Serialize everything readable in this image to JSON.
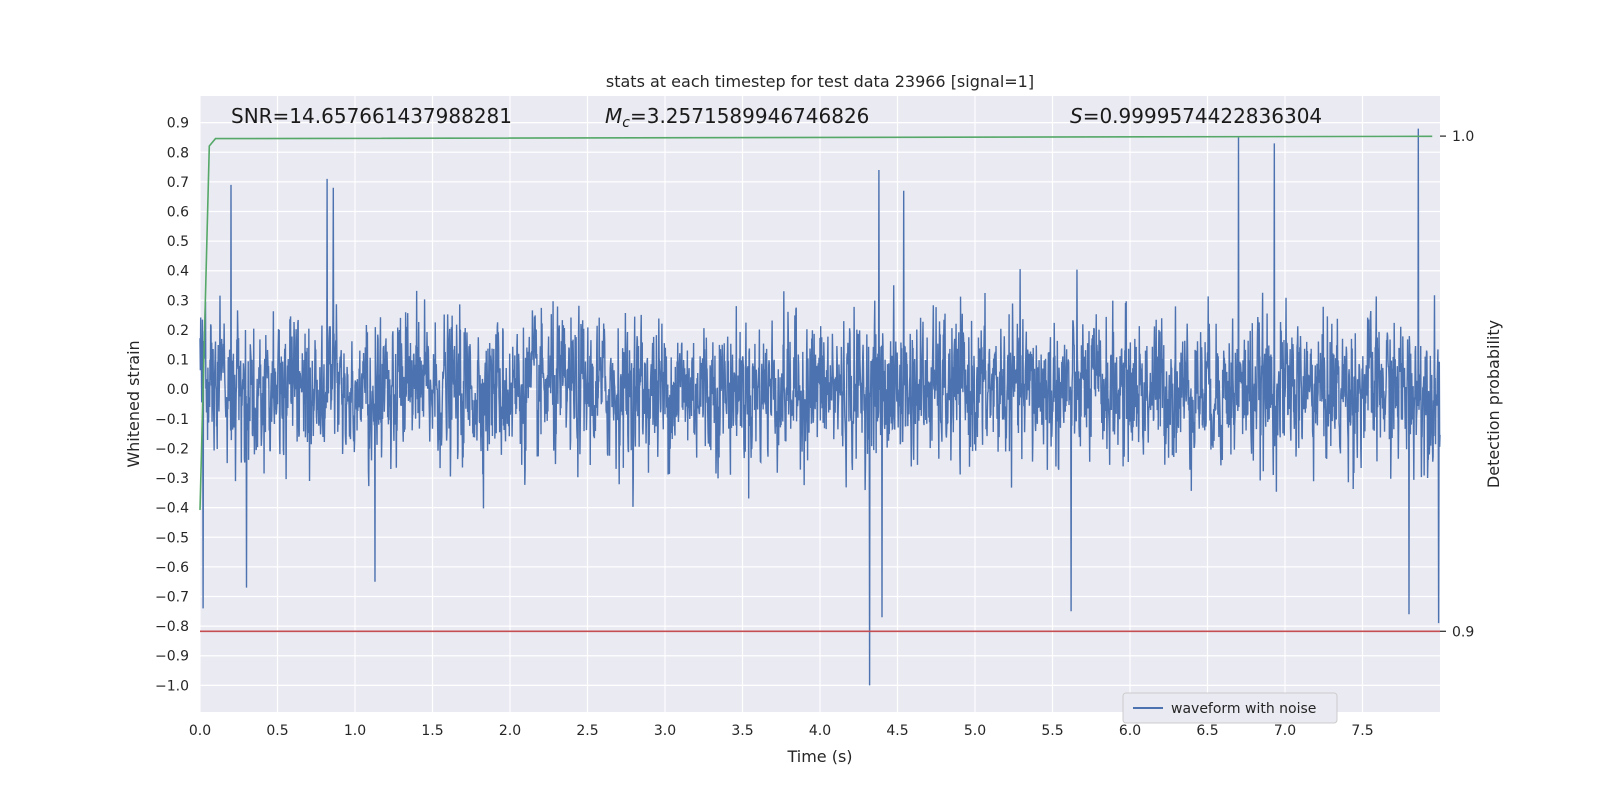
{
  "chart_data": {
    "type": "line",
    "title": "stats at each timestep for test data 23966 [signal=1]",
    "xlabel": "Time (s)",
    "ylabel": "Whitened strain",
    "y2label": "Detection probability",
    "xlim": [
      0.0,
      8.0
    ],
    "ylim": [
      -1.09,
      0.99
    ],
    "y2lim": [
      0.8837,
      1.0081
    ],
    "x_ticks": [
      "0.0",
      "0.5",
      "1.0",
      "1.5",
      "2.0",
      "2.5",
      "3.0",
      "3.5",
      "4.0",
      "4.5",
      "5.0",
      "5.5",
      "6.0",
      "6.5",
      "7.0",
      "7.5"
    ],
    "y_ticks": [
      "0.9",
      "0.8",
      "0.7",
      "0.6",
      "0.5",
      "0.4",
      "0.3",
      "0.2",
      "0.1",
      "0.0",
      "−0.1",
      "−0.2",
      "−0.3",
      "−0.4",
      "−0.5",
      "−0.6",
      "−0.7",
      "−0.8",
      "−0.9",
      "−1.0"
    ],
    "y2_ticks": [
      "1.0",
      "0.9"
    ],
    "grid": true,
    "annotations": {
      "snr": "SNR=14.657661437988281",
      "mc_symbol": "M",
      "mc_sub": "c",
      "mc_value": "=3.2571589946746826",
      "s_symbol": "S",
      "s_value": "=0.9999574422836304"
    },
    "legend": {
      "placement": "lower-right",
      "label": "waveform with noise"
    },
    "series": [
      {
        "name": "waveform with noise",
        "color": "#4c72b0",
        "x_range": [
          0.0,
          8.0
        ],
        "noise_sigma": 0.16,
        "spikes": [
          {
            "x": 0.02,
            "y": -0.74
          },
          {
            "x": 0.2,
            "y": 0.69
          },
          {
            "x": 0.3,
            "y": -0.67
          },
          {
            "x": 0.82,
            "y": 0.71
          },
          {
            "x": 0.86,
            "y": 0.68
          },
          {
            "x": 1.13,
            "y": -0.65
          },
          {
            "x": 4.32,
            "y": -1.0
          },
          {
            "x": 4.38,
            "y": 0.74
          },
          {
            "x": 4.4,
            "y": -0.77
          },
          {
            "x": 4.54,
            "y": 0.67
          },
          {
            "x": 5.62,
            "y": -0.75
          },
          {
            "x": 6.7,
            "y": 0.85
          },
          {
            "x": 6.93,
            "y": 0.83
          },
          {
            "x": 7.8,
            "y": -0.76
          },
          {
            "x": 7.86,
            "y": 0.88
          },
          {
            "x": 7.99,
            "y": -0.79
          }
        ]
      },
      {
        "name": "",
        "color": "#55a868",
        "axis": "right",
        "points": [
          [
            0.0,
            0.9245
          ],
          [
            0.06,
            0.998
          ],
          [
            0.1,
            0.9995
          ],
          [
            7.95,
            0.9999574
          ]
        ]
      },
      {
        "name": "",
        "color": "#c44e52",
        "axis": "right",
        "points": [
          [
            0.0,
            0.9
          ],
          [
            8.0,
            0.9
          ]
        ]
      }
    ]
  }
}
